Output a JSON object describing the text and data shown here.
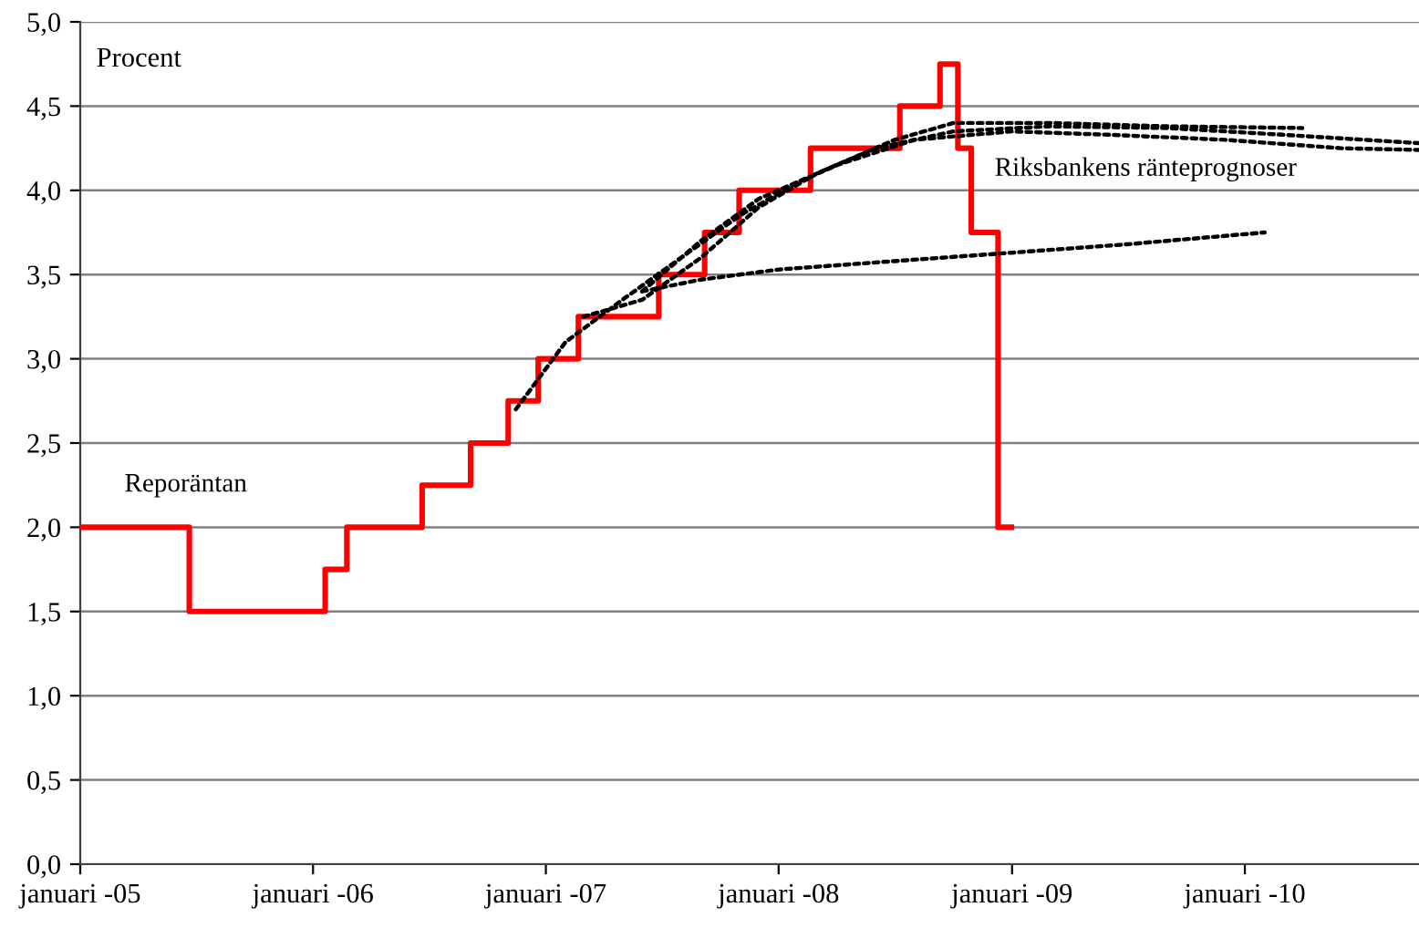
{
  "chart_data": {
    "type": "line",
    "ylabel": "Procent",
    "annotations": [
      "Reporäntan",
      "Riksbankens ränteprognoser"
    ],
    "xlim": [
      "2005-01-01",
      "2010-10-01"
    ],
    "xticks": [
      {
        "value": "2005-01-01",
        "label": "januari -05"
      },
      {
        "value": "2006-01-01",
        "label": "januari -06"
      },
      {
        "value": "2007-01-01",
        "label": "januari -07"
      },
      {
        "value": "2008-01-01",
        "label": "januari -08"
      },
      {
        "value": "2009-01-01",
        "label": "januari -09"
      },
      {
        "value": "2010-01-01",
        "label": "januari -10"
      }
    ],
    "ylim": [
      0,
      5
    ],
    "yticks": [
      {
        "value": 0,
        "label": "0,0"
      },
      {
        "value": 0.5,
        "label": "0,5"
      },
      {
        "value": 1,
        "label": "1,0"
      },
      {
        "value": 1.5,
        "label": "1,5"
      },
      {
        "value": 2,
        "label": "2,0"
      },
      {
        "value": 2.5,
        "label": "2,5"
      },
      {
        "value": 3,
        "label": "3,0"
      },
      {
        "value": 3.5,
        "label": "3,5"
      },
      {
        "value": 4,
        "label": "4,0"
      },
      {
        "value": 4.5,
        "label": "4,5"
      },
      {
        "value": 5,
        "label": "5,0"
      }
    ],
    "grid": "y",
    "series": [
      {
        "type": "step",
        "color": "#ff0000",
        "line_style": "solid",
        "x": [
          "2005-01-01",
          "2005-06-21",
          "2006-01-20",
          "2006-02-23",
          "2006-06-21",
          "2006-09-05",
          "2006-11-03",
          "2006-12-20",
          "2007-02-21",
          "2007-06-27",
          "2007-09-07",
          "2007-10-31",
          "2008-02-20",
          "2008-07-09",
          "2008-09-10",
          "2008-10-08",
          "2008-10-29",
          "2008-12-10",
          "2008-12-31"
        ],
        "values": [
          2.0,
          1.5,
          1.75,
          2.0,
          2.25,
          2.5,
          2.75,
          3.0,
          3.25,
          3.5,
          3.75,
          4.0,
          4.25,
          4.5,
          4.75,
          4.25,
          3.75,
          2.0,
          2.0
        ]
      },
      {
        "color": "#000000",
        "line_style": "dotted",
        "x": [
          "2006-11-15",
          "2007-02-01",
          "2007-05-01",
          "2007-08-01",
          "2007-11-01",
          "2008-02-01",
          "2008-06-01",
          "2008-10-01",
          "2009-03-01",
          "2009-09-01",
          "2010-03-01",
          "2010-10-01"
        ],
        "values": [
          2.7,
          3.1,
          3.35,
          3.6,
          3.85,
          4.05,
          4.25,
          4.35,
          4.38,
          4.37,
          4.33,
          4.28
        ]
      },
      {
        "color": "#000000",
        "line_style": "dotted",
        "x": [
          "2007-03-01",
          "2007-06-01",
          "2007-09-01",
          "2007-12-01",
          "2008-03-01",
          "2008-07-01",
          "2008-10-01",
          "2009-03-01",
          "2009-09-01",
          "2010-04-01"
        ],
        "values": [
          3.25,
          3.35,
          3.6,
          3.9,
          4.1,
          4.3,
          4.4,
          4.4,
          4.38,
          4.37
        ]
      },
      {
        "color": "#000000",
        "line_style": "dotted",
        "x": [
          "2007-06-01",
          "2007-09-01",
          "2007-12-01",
          "2008-04-01",
          "2008-08-01",
          "2009-01-01",
          "2009-06-01",
          "2009-12-01",
          "2010-06-01",
          "2010-10-01"
        ],
        "values": [
          3.4,
          3.7,
          3.95,
          4.15,
          4.3,
          4.35,
          4.33,
          4.3,
          4.25,
          4.24
        ]
      },
      {
        "color": "#000000",
        "line_style": "dotted",
        "x": [
          "2007-06-01",
          "2007-09-01",
          "2008-01-01",
          "2008-07-01",
          "2009-01-01",
          "2009-07-01",
          "2010-02-01"
        ],
        "values": [
          3.4,
          3.47,
          3.53,
          3.58,
          3.63,
          3.68,
          3.75
        ]
      }
    ]
  }
}
